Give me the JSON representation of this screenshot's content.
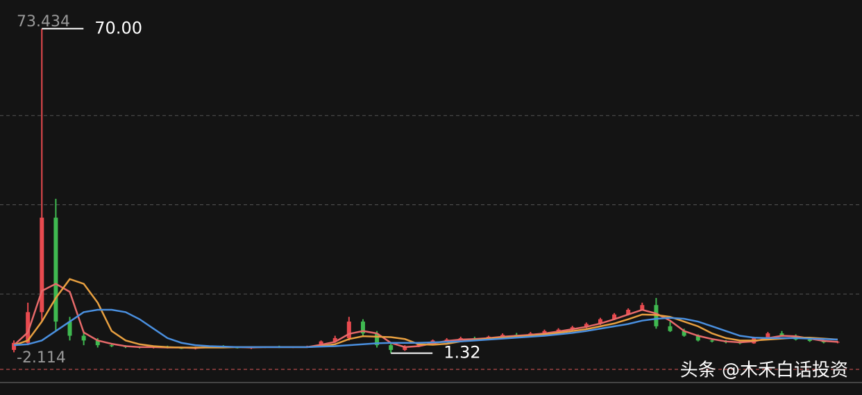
{
  "chart_data": {
    "type": "candlestick",
    "open": [
      2,
      3.5,
      10,
      30,
      8,
      5,
      4,
      3,
      2.8,
      2.6,
      2.5,
      2.7,
      2.4,
      2.3,
      2.6,
      2.8,
      2.5,
      2.4,
      2.6,
      2.7,
      2.5,
      2.6,
      2.8,
      3.8,
      4.5,
      8,
      5.5,
      3,
      2,
      2.8,
      3.5,
      4,
      4.2,
      4.5,
      4.3,
      4.8,
      5.2,
      5,
      5.5,
      6,
      6.3,
      6.8,
      7.5,
      8.5,
      9.5,
      10.5,
      11.5,
      7,
      6,
      5,
      4,
      3.8,
      3.6,
      3.4,
      4.5,
      5.5,
      5,
      4.2,
      3.9,
      3.6
    ],
    "high": [
      4,
      12,
      70,
      34,
      9,
      6,
      4.5,
      3.3,
      3,
      2.8,
      2.8,
      2.9,
      2.6,
      2.7,
      2.9,
      3,
      2.7,
      2.7,
      2.8,
      2.9,
      2.7,
      2.9,
      4,
      5,
      9,
      8.5,
      6,
      3.5,
      3,
      3.7,
      4.2,
      4.5,
      4.8,
      4.8,
      5,
      5.5,
      5.6,
      5.8,
      6.3,
      6.6,
      7.1,
      7.8,
      8.8,
      9.8,
      10.8,
      12,
      13,
      8,
      6.5,
      5.3,
      4.3,
      4.1,
      3.8,
      4.8,
      5.8,
      6,
      5.3,
      4.5,
      4.1,
      3.9
    ],
    "low": [
      1.5,
      3,
      8,
      6,
      4,
      3,
      2.5,
      2.6,
      2.4,
      2.3,
      2.3,
      2.3,
      2.2,
      2.1,
      2.4,
      2.4,
      2.3,
      2.2,
      2.4,
      2.4,
      2.4,
      2.5,
      2.6,
      3.5,
      4,
      5,
      2.5,
      1.32,
      1.8,
      2.6,
      3.3,
      3.8,
      4,
      4.1,
      4.1,
      4.6,
      4.8,
      4.8,
      5.3,
      5.8,
      6.1,
      6.6,
      7.3,
      8.3,
      9.3,
      10.3,
      6.5,
      5.8,
      4.8,
      3.8,
      3.6,
      3.4,
      3.2,
      3.3,
      4.3,
      4.8,
      4,
      3.7,
      3.4,
      3.4
    ],
    "close": [
      3.5,
      10,
      30,
      8,
      5,
      4,
      3,
      2.8,
      2.6,
      2.5,
      2.7,
      2.4,
      2.3,
      2.6,
      2.8,
      2.5,
      2.4,
      2.6,
      2.7,
      2.5,
      2.6,
      2.8,
      3.8,
      4.5,
      8,
      5.5,
      3,
      2,
      2.8,
      3.5,
      4,
      4.2,
      4.5,
      4.3,
      4.8,
      5.2,
      5,
      5.5,
      6,
      6.3,
      6.8,
      7.5,
      8.5,
      9.5,
      10.5,
      11.5,
      7,
      6,
      5,
      4,
      3.8,
      3.6,
      3.4,
      4.5,
      5.5,
      5,
      4.2,
      3.9,
      3.6,
      3.7
    ],
    "up_color": "#e84a4f",
    "down_color": "#3fb950",
    "lines": [
      {
        "color": "#e86a6a",
        "values": [
          3,
          5.7,
          14.5,
          16,
          14.3,
          5.7,
          4,
          3.3,
          2.8,
          2.6,
          2.6,
          2.5,
          2.5,
          2.4,
          2.6,
          2.6,
          2.6,
          2.5,
          2.6,
          2.6,
          2.6,
          2.6,
          3.1,
          3.7,
          5.4,
          6,
          5.5,
          3.5,
          2.6,
          2.8,
          3.4,
          3.9,
          4.2,
          4.3,
          4.5,
          4.8,
          5,
          5.2,
          5.5,
          5.9,
          6.4,
          6.9,
          7.6,
          8.5,
          9.5,
          10.5,
          9.7,
          8.2,
          6,
          5,
          4.3,
          3.8,
          3.6,
          3.8,
          4.5,
          5,
          4.9,
          4.4,
          3.9,
          3.7
        ]
      },
      {
        "color": "#e8a040",
        "values": [
          3,
          4,
          8,
          13,
          17,
          16,
          12,
          6,
          4,
          3.2,
          2.8,
          2.6,
          2.5,
          2.5,
          2.5,
          2.5,
          2.6,
          2.6,
          2.6,
          2.6,
          2.6,
          2.6,
          2.8,
          3.2,
          4.3,
          4.9,
          4.8,
          4.7,
          4.3,
          3.2,
          3.1,
          3.3,
          3.8,
          4.1,
          4.4,
          4.6,
          4.8,
          5,
          5.3,
          5.6,
          6,
          6.4,
          7,
          7.6,
          8.5,
          9.5,
          9.4,
          9,
          8,
          7,
          5.5,
          4.5,
          4,
          4,
          4.2,
          4.4,
          4.6,
          4.6,
          4.4,
          4.2
        ]
      },
      {
        "color": "#4a90e0",
        "values": [
          3,
          3.2,
          4,
          6,
          8,
          10,
          10.5,
          10.5,
          10,
          8.5,
          6.5,
          4.5,
          3.5,
          3,
          2.8,
          2.7,
          2.6,
          2.6,
          2.6,
          2.6,
          2.6,
          2.6,
          2.7,
          2.8,
          3,
          3.2,
          3.4,
          3.5,
          3.5,
          3.5,
          3.6,
          3.7,
          3.8,
          4,
          4.2,
          4.4,
          4.6,
          4.8,
          5,
          5.3,
          5.6,
          6,
          6.5,
          7,
          7.5,
          8.2,
          8.6,
          8.8,
          8.6,
          8,
          7,
          6,
          5,
          4.6,
          4.5,
          4.5,
          4.5,
          4.4,
          4.3,
          4.2
        ]
      }
    ],
    "ylim": [
      -2.114,
      73.434
    ],
    "yticks": [
      -2.114,
      73.434
    ],
    "max_label": "70.00",
    "min_label": "1.32",
    "watermark": "头条 @木禾白话投资"
  }
}
